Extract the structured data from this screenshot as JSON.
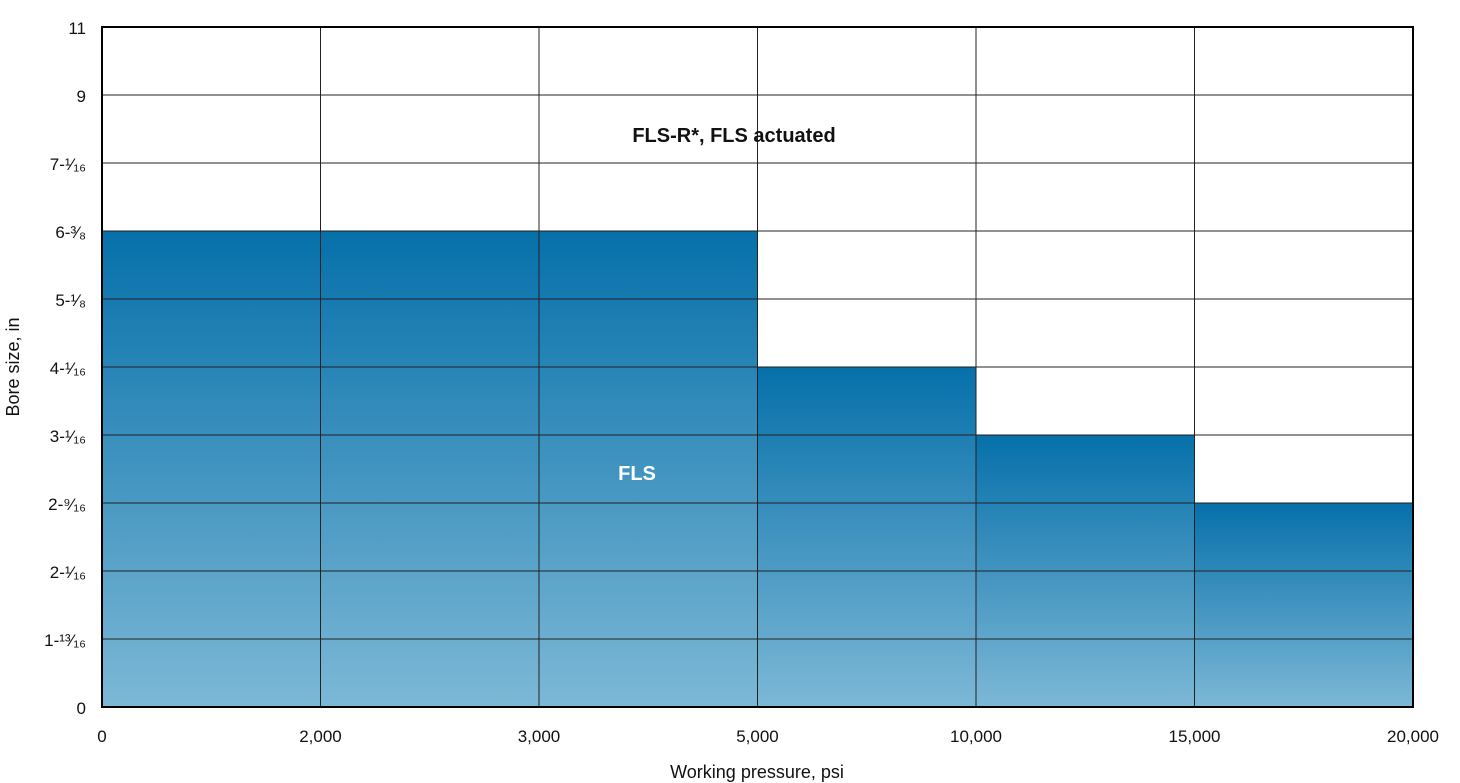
{
  "chart_data": {
    "type": "area",
    "title": "",
    "xlabel": "Working pressure, psi",
    "ylabel": "Bore size, in",
    "x_ticks": [
      "0",
      "2,000",
      "3,000",
      "5,000",
      "10,000",
      "15,000",
      "20,000"
    ],
    "y_ticks": [
      "0",
      "1-¹³⁄₁₆",
      "2-¹⁄₁₆",
      "2-⁹⁄₁₆",
      "3-¹⁄₁₆",
      "4-¹⁄₁₆",
      "5-¹⁄₈",
      "6-³⁄₈",
      "7-¹⁄₁₆",
      "9",
      "11"
    ],
    "grid": true,
    "series": [
      {
        "name": "FLS",
        "label": "FLS",
        "color_top": "#0670aa",
        "color_bottom": "#7db8d6",
        "label_color": "#ffffff",
        "steps": [
          {
            "x_from": "0",
            "x_to": "5,000",
            "y": "6-³⁄₈"
          },
          {
            "x_from": "5,000",
            "x_to": "10,000",
            "y": "4-¹⁄₁₆"
          },
          {
            "x_from": "10,000",
            "x_to": "15,000",
            "y": "3-¹⁄₁₆"
          },
          {
            "x_from": "15,000",
            "x_to": "20,000",
            "y": "2-⁹⁄₁₆"
          }
        ]
      },
      {
        "name": "FLS-R*, FLS actuated",
        "label": "FLS-R*, FLS actuated",
        "color": "#ffffff",
        "label_color": "#111111",
        "steps": [
          {
            "x_from": "0",
            "x_to": "20,000",
            "y": "11"
          }
        ]
      }
    ]
  }
}
